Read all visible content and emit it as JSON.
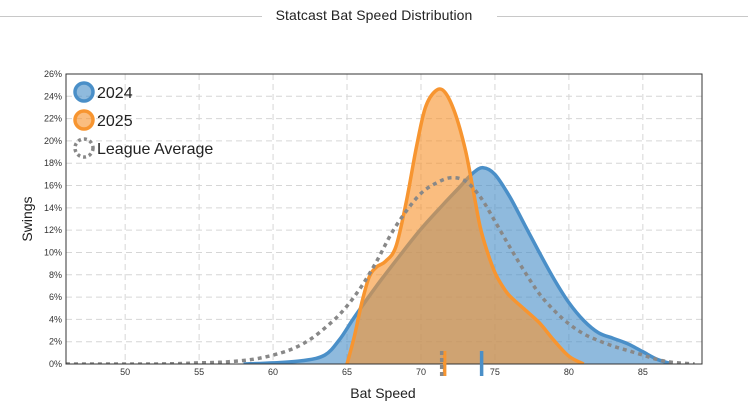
{
  "chart_data": {
    "type": "area",
    "title": "Statcast Bat Speed Distribution",
    "xlabel": "Bat Speed",
    "ylabel": "Swings",
    "xlim": [
      46,
      89
    ],
    "ylim": [
      0,
      26
    ],
    "xticks": [
      50,
      55,
      60,
      65,
      70,
      75,
      80,
      85
    ],
    "yticks": [
      0,
      2,
      4,
      6,
      8,
      10,
      12,
      14,
      16,
      18,
      20,
      22,
      24,
      26
    ],
    "ytick_suffix": "%",
    "grid": true,
    "legend_position": "top-left",
    "series": [
      {
        "name": "2024",
        "color": "#4a8fc8",
        "style": "filled",
        "mean_marker": 74.1,
        "x": [
          58,
          60,
          62,
          63.5,
          64.5,
          65.5,
          67,
          68.5,
          70,
          71.5,
          72.5,
          73.5,
          74.2,
          75,
          76,
          77,
          78,
          79,
          80,
          81,
          82,
          83,
          84,
          85,
          86,
          87
        ],
        "y": [
          0,
          0.1,
          0.3,
          0.8,
          2.2,
          4.2,
          7,
          9.6,
          12.1,
          14.3,
          15.7,
          17.1,
          17.6,
          17,
          15,
          12.5,
          10,
          7.6,
          5.5,
          3.9,
          2.8,
          2.3,
          1.8,
          1.1,
          0.4,
          0
        ]
      },
      {
        "name": "2025",
        "color": "#f79530",
        "style": "filled",
        "mean_marker": 71.6,
        "x": [
          65,
          65.5,
          66,
          66.5,
          67,
          67.6,
          68.3,
          69,
          69.7,
          70.3,
          71,
          71.6,
          72.3,
          73,
          73.5,
          74,
          74.5,
          75,
          75.5,
          76,
          77,
          78,
          79,
          80,
          81
        ],
        "y": [
          0,
          2.5,
          5.5,
          7.8,
          8.7,
          9.2,
          10.5,
          14.5,
          19.5,
          23,
          24.5,
          24.4,
          22.5,
          19.2,
          15.8,
          12.3,
          10,
          8.2,
          7,
          6.1,
          4.9,
          3.7,
          2.1,
          0.7,
          0
        ]
      },
      {
        "name": "League Average",
        "color": "#888888",
        "style": "dashed",
        "mean_marker": 71.4,
        "x": [
          46,
          52,
          55,
          57,
          59,
          61,
          62.5,
          64,
          65,
          66,
          67,
          68,
          69,
          70,
          71,
          72,
          73,
          74,
          75,
          76,
          77,
          78,
          79,
          80,
          81,
          82,
          83,
          84,
          85,
          86,
          87,
          88.5
        ],
        "y": [
          0,
          0,
          0.1,
          0.2,
          0.5,
          1.2,
          2.2,
          3.8,
          5.2,
          7,
          9.2,
          11.7,
          13.7,
          15.3,
          16.2,
          16.7,
          16.4,
          15,
          12.8,
          10.5,
          8.3,
          6.3,
          4.8,
          3.6,
          2.7,
          2.1,
          1.6,
          1.2,
          0.8,
          0.4,
          0.15,
          0
        ]
      }
    ]
  }
}
